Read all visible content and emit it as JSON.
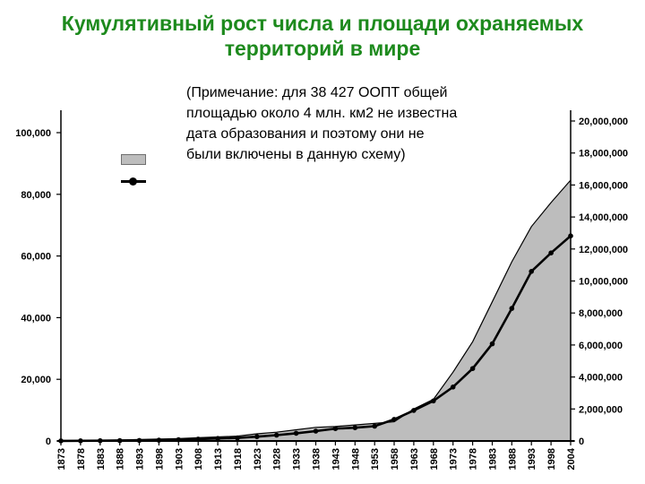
{
  "title": {
    "line1": "Кумулятивный рост числа и площади охраняемых",
    "line2": "территорий в мире"
  },
  "note_lines": [
    "(Примечание: для 38 427 ООПТ общей",
    "площадью около 4 млн. км2 не известна",
    "дата образования и поэтому они не",
    "были включены в данную схему)"
  ],
  "colors": {
    "title_green": "#1d8a1d",
    "text": "#000000",
    "area_fill": "#bdbdbd",
    "area_outline": "#000000",
    "line": "#000000",
    "background": "#ffffff"
  },
  "chart_data": {
    "type": "area",
    "title": "Кумулятивный рост числа и площади охраняемых территорий в мире",
    "xlabel": "",
    "ylabel_left": "",
    "ylabel_right": "",
    "grid": false,
    "categories": [
      "1873",
      "1878",
      "1883",
      "1888",
      "1893",
      "1898",
      "1903",
      "1908",
      "1913",
      "1918",
      "1923",
      "1928",
      "1933",
      "1938",
      "1943",
      "1948",
      "1953",
      "1958",
      "1963",
      "1968",
      "1973",
      "1978",
      "1983",
      "1988",
      "1993",
      "1998",
      "2004"
    ],
    "series": [
      {
        "name": "cumulative-protected-area-km2-gray-area",
        "type": "area",
        "axis": "right",
        "color": "#bdbdbd",
        "values": [
          10000,
          30000,
          50000,
          70000,
          90000,
          120000,
          150000,
          200000,
          250000,
          300000,
          450000,
          550000,
          700000,
          850000,
          900000,
          1000000,
          1100000,
          1200000,
          2000000,
          2600000,
          4300000,
          6200000,
          8700000,
          11200000,
          13400000,
          14900000,
          16300000
        ]
      },
      {
        "name": "cumulative-protected-area-count-black-line",
        "type": "line",
        "axis": "left",
        "color": "#000000",
        "values": [
          20,
          50,
          80,
          120,
          180,
          250,
          400,
          600,
          800,
          1000,
          1400,
          1900,
          2500,
          3200,
          4000,
          4300,
          4800,
          7000,
          9900,
          13000,
          17500,
          23500,
          31500,
          43000,
          55000,
          61000,
          66500
        ]
      }
    ],
    "left_axis": {
      "min": 0,
      "max": 100000,
      "tick_values": [
        0,
        20000,
        40000,
        60000,
        80000,
        100000
      ],
      "tick_labels": [
        "0",
        "20,000",
        "40,000",
        "60,000",
        "80,000",
        "100,000"
      ]
    },
    "right_axis": {
      "min": 0,
      "max": 20000000,
      "tick_values": [
        0,
        2000000,
        4000000,
        6000000,
        8000000,
        10000000,
        12000000,
        14000000,
        16000000,
        18000000,
        20000000
      ],
      "tick_labels": [
        "0",
        "2,000,000",
        "4,000,000",
        "6,000,000",
        "8,000,000",
        "10,000,000",
        "12,000,000",
        "14,000,000",
        "16,000,000",
        "18,000,000",
        "20,000,000"
      ]
    },
    "legend": {
      "position": "inside-top-left",
      "entries": [
        {
          "name": "gray-area-swatch",
          "color": "#bdbdbd"
        },
        {
          "name": "black-line-swatch",
          "color": "#000000"
        }
      ]
    }
  }
}
